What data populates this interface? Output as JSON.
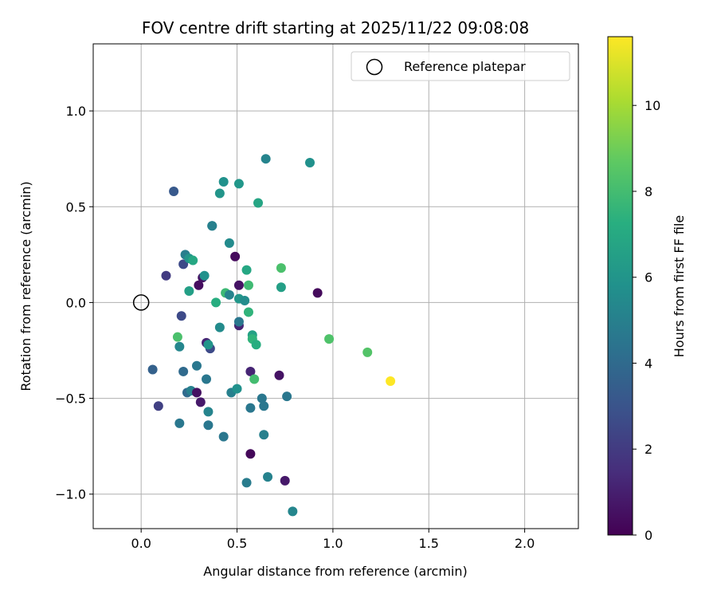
{
  "chart_data": {
    "type": "scatter",
    "title": "FOV centre drift starting at 2025/11/22 09:08:08",
    "xlabel": "Angular distance from reference (arcmin)",
    "ylabel": "Rotation from reference (arcmin)",
    "xlim": [
      -0.25,
      2.28
    ],
    "ylim": [
      -1.18,
      1.35
    ],
    "xticks": [
      "0.0",
      "0.5",
      "1.0",
      "1.5",
      "2.0"
    ],
    "xtick_values": [
      0,
      0.5,
      1.0,
      1.5,
      2.0
    ],
    "yticks": [
      "−1.0",
      "−0.5",
      "0.0",
      "0.5",
      "1.0"
    ],
    "ytick_values": [
      -1.0,
      -0.5,
      0,
      0.5,
      1.0
    ],
    "grid": true,
    "legend": {
      "position": "top-right",
      "label": "Reference platepar"
    },
    "reference_point": {
      "x": 0.0,
      "y": 0.0
    },
    "colorbar": {
      "label": "Hours from first FF file",
      "min": 0,
      "max": 11.6,
      "ticks": [
        "0",
        "2",
        "4",
        "6",
        "8",
        "10"
      ],
      "tick_values": [
        0,
        2,
        4,
        6,
        8,
        10
      ],
      "colormap": "viridis"
    },
    "points": [
      {
        "x": 0.2,
        "y": -0.63,
        "hours": 4.6
      },
      {
        "x": 0.19,
        "y": -0.18,
        "hours": 8.2
      },
      {
        "x": 0.2,
        "y": -0.23,
        "hours": 5.3
      },
      {
        "x": 0.06,
        "y": -0.35,
        "hours": 3.6
      },
      {
        "x": 0.09,
        "y": -0.54,
        "hours": 2.2
      },
      {
        "x": 0.13,
        "y": 0.14,
        "hours": 2.0
      },
      {
        "x": 0.17,
        "y": 0.58,
        "hours": 3.2
      },
      {
        "x": 0.21,
        "y": -0.07,
        "hours": 2.6
      },
      {
        "x": 0.22,
        "y": -0.36,
        "hours": 4.0
      },
      {
        "x": 0.23,
        "y": 0.25,
        "hours": 4.9
      },
      {
        "x": 0.22,
        "y": 0.2,
        "hours": 2.6
      },
      {
        "x": 0.24,
        "y": -0.47,
        "hours": 4.0
      },
      {
        "x": 0.25,
        "y": 0.23,
        "hours": 6.0
      },
      {
        "x": 0.25,
        "y": 0.06,
        "hours": 6.5
      },
      {
        "x": 0.26,
        "y": -0.46,
        "hours": 5.0
      },
      {
        "x": 0.27,
        "y": 0.22,
        "hours": 6.9
      },
      {
        "x": 0.29,
        "y": -0.33,
        "hours": 4.6
      },
      {
        "x": 0.29,
        "y": -0.47,
        "hours": 0.5
      },
      {
        "x": 0.3,
        "y": 0.09,
        "hours": 0.4
      },
      {
        "x": 0.31,
        "y": -0.52,
        "hours": 0.8
      },
      {
        "x": 0.32,
        "y": 0.13,
        "hours": 0.6
      },
      {
        "x": 0.33,
        "y": 0.14,
        "hours": 5.8
      },
      {
        "x": 0.34,
        "y": -0.4,
        "hours": 4.6
      },
      {
        "x": 0.34,
        "y": -0.21,
        "hours": 1.2
      },
      {
        "x": 0.35,
        "y": -0.64,
        "hours": 4.6
      },
      {
        "x": 0.35,
        "y": -0.57,
        "hours": 5.2
      },
      {
        "x": 0.36,
        "y": -0.24,
        "hours": 2.6
      },
      {
        "x": 0.35,
        "y": -0.22,
        "hours": 6.0
      },
      {
        "x": 0.37,
        "y": 0.4,
        "hours": 4.7
      },
      {
        "x": 0.37,
        "y": 0.4,
        "hours": 5.0
      },
      {
        "x": 0.39,
        "y": 0.0,
        "hours": 7.2
      },
      {
        "x": 0.41,
        "y": -0.13,
        "hours": 5.5
      },
      {
        "x": 0.41,
        "y": 0.57,
        "hours": 6.0
      },
      {
        "x": 0.43,
        "y": 0.63,
        "hours": 5.8
      },
      {
        "x": 0.43,
        "y": -0.7,
        "hours": 4.6
      },
      {
        "x": 0.44,
        "y": 0.05,
        "hours": 7.8
      },
      {
        "x": 0.46,
        "y": 0.04,
        "hours": 5.2
      },
      {
        "x": 0.46,
        "y": 0.31,
        "hours": 5.5
      },
      {
        "x": 0.47,
        "y": -0.47,
        "hours": 5.0
      },
      {
        "x": 0.49,
        "y": 0.24,
        "hours": 0.3
      },
      {
        "x": 0.5,
        "y": -0.45,
        "hours": 5.8
      },
      {
        "x": 0.51,
        "y": 0.09,
        "hours": 0.6
      },
      {
        "x": 0.51,
        "y": 0.62,
        "hours": 6.1
      },
      {
        "x": 0.51,
        "y": 0.02,
        "hours": 6.1
      },
      {
        "x": 0.51,
        "y": -0.12,
        "hours": 1.2
      },
      {
        "x": 0.51,
        "y": -0.1,
        "hours": 4.6
      },
      {
        "x": 0.54,
        "y": 0.01,
        "hours": 5.6
      },
      {
        "x": 0.55,
        "y": 0.17,
        "hours": 6.9
      },
      {
        "x": 0.55,
        "y": -0.94,
        "hours": 4.8
      },
      {
        "x": 0.56,
        "y": 0.09,
        "hours": 7.9
      },
      {
        "x": 0.56,
        "y": -0.05,
        "hours": 7.5
      },
      {
        "x": 0.57,
        "y": -0.36,
        "hours": 1.2
      },
      {
        "x": 0.57,
        "y": -0.55,
        "hours": 4.6
      },
      {
        "x": 0.57,
        "y": -0.79,
        "hours": 0.2
      },
      {
        "x": 0.58,
        "y": -0.17,
        "hours": 6.6
      },
      {
        "x": 0.58,
        "y": -0.19,
        "hours": 7.5
      },
      {
        "x": 0.59,
        "y": -0.4,
        "hours": 8.0
      },
      {
        "x": 0.6,
        "y": -0.22,
        "hours": 7.2
      },
      {
        "x": 0.61,
        "y": 0.52,
        "hours": 6.8
      },
      {
        "x": 0.63,
        "y": -0.5,
        "hours": 4.6
      },
      {
        "x": 0.64,
        "y": -0.69,
        "hours": 5.0
      },
      {
        "x": 0.64,
        "y": -0.54,
        "hours": 4.6
      },
      {
        "x": 0.65,
        "y": 0.75,
        "hours": 5.2
      },
      {
        "x": 0.66,
        "y": -0.91,
        "hours": 5.1
      },
      {
        "x": 0.72,
        "y": -0.38,
        "hours": 0.6
      },
      {
        "x": 0.73,
        "y": 0.08,
        "hours": 6.5
      },
      {
        "x": 0.73,
        "y": 0.18,
        "hours": 8.2
      },
      {
        "x": 0.75,
        "y": -0.93,
        "hours": 0.8
      },
      {
        "x": 0.76,
        "y": -0.49,
        "hours": 4.6
      },
      {
        "x": 0.79,
        "y": -1.09,
        "hours": 5.3
      },
      {
        "x": 0.88,
        "y": 0.73,
        "hours": 5.8
      },
      {
        "x": 0.92,
        "y": 0.05,
        "hours": 0.3
      },
      {
        "x": 0.98,
        "y": -0.19,
        "hours": 8.3
      },
      {
        "x": 1.18,
        "y": -0.26,
        "hours": 8.4
      },
      {
        "x": 1.3,
        "y": -0.41,
        "hours": 11.6
      }
    ]
  }
}
